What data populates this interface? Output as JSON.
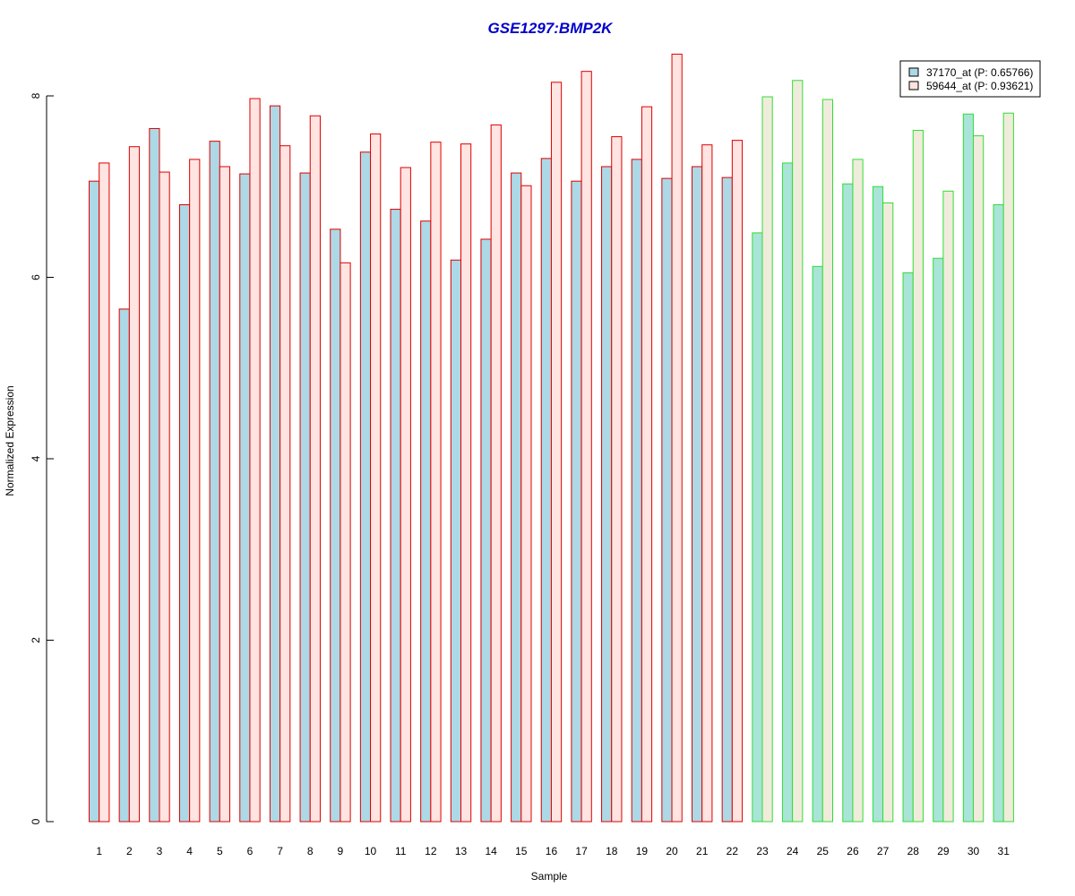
{
  "chart_data": {
    "type": "bar",
    "title": "GSE1297:BMP2K",
    "xlabel": "Sample",
    "ylabel": "Normalized Expression",
    "ylim": [
      0,
      8.5
    ],
    "yticks": [
      0,
      2,
      4,
      6,
      8
    ],
    "categories": [
      "1",
      "2",
      "3",
      "4",
      "5",
      "6",
      "7",
      "8",
      "9",
      "10",
      "11",
      "12",
      "13",
      "14",
      "15",
      "16",
      "17",
      "18",
      "19",
      "20",
      "21",
      "22",
      "23",
      "24",
      "25",
      "26",
      "27",
      "28",
      "29",
      "30",
      "31"
    ],
    "group_border_colors": [
      "red",
      "red",
      "red",
      "red",
      "red",
      "red",
      "red",
      "red",
      "red",
      "red",
      "red",
      "red",
      "red",
      "red",
      "red",
      "red",
      "red",
      "red",
      "red",
      "red",
      "red",
      "red",
      "green",
      "green",
      "green",
      "green",
      "green",
      "green",
      "green",
      "green",
      "green"
    ],
    "colors": {
      "red_border": "#dd0000",
      "green_border": "#33dd33",
      "series1_red_fill": "#add8e6",
      "series2_red_fill": "#ffe4e1",
      "series1_green_fill": "#a8e4d8",
      "series2_green_fill": "#f0ecdc"
    },
    "legend_position": "top-right",
    "series": [
      {
        "name": "37170_at (P: 0.65766)",
        "values": [
          7.06,
          5.65,
          7.64,
          6.8,
          7.5,
          7.14,
          7.89,
          7.15,
          6.53,
          7.38,
          6.75,
          6.62,
          6.19,
          6.42,
          7.15,
          7.31,
          7.06,
          7.22,
          7.3,
          7.09,
          7.22,
          7.1,
          6.49,
          7.26,
          6.12,
          7.03,
          7.0,
          6.05,
          6.21,
          7.8,
          6.8
        ]
      },
      {
        "name": "59644_at (P: 0.93621)",
        "values": [
          7.26,
          7.44,
          7.16,
          7.3,
          7.22,
          7.97,
          7.45,
          7.78,
          6.16,
          7.58,
          7.21,
          7.49,
          7.47,
          7.68,
          7.01,
          8.15,
          8.27,
          7.55,
          7.88,
          8.46,
          7.46,
          7.51,
          7.99,
          8.17,
          7.96,
          7.3,
          6.82,
          7.62,
          6.95,
          7.56,
          7.81
        ]
      }
    ]
  }
}
